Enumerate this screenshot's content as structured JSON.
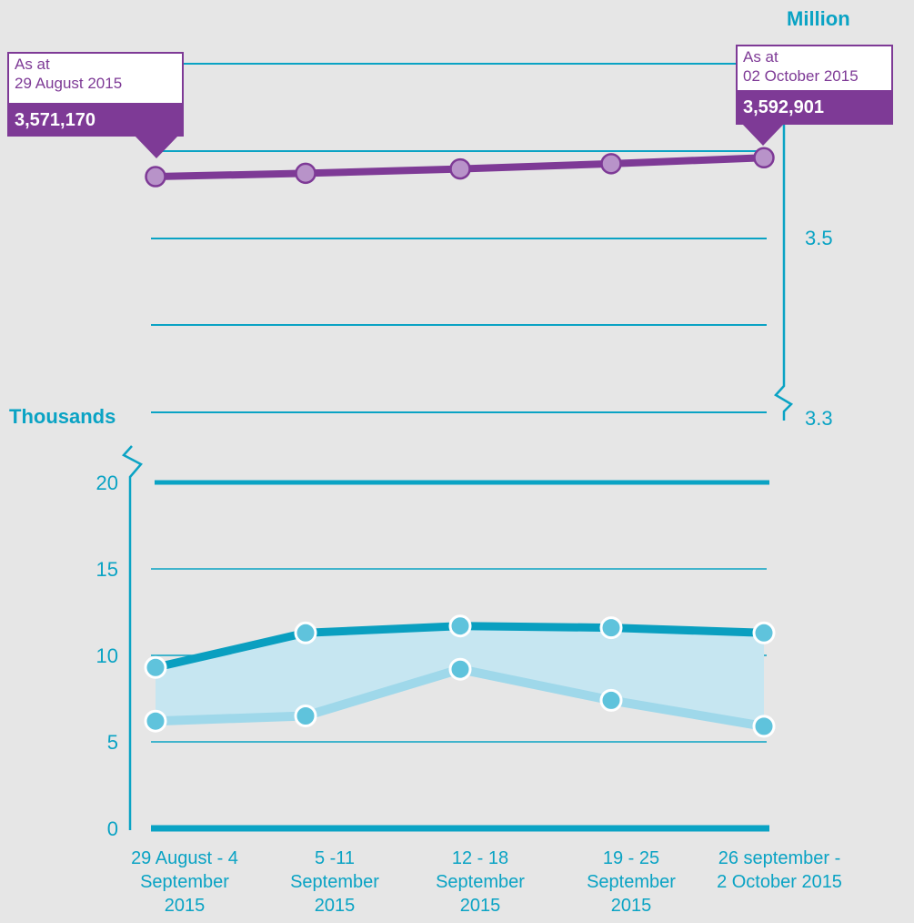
{
  "chart_data": [
    {
      "type": "line",
      "unit_label": "Million",
      "y_ticks": [
        "3.5",
        "3.3"
      ],
      "ylim": [
        3.3,
        3.6
      ],
      "categories": [
        "29 August - 4 September 2015",
        "5 -11 September 2015",
        "12 - 18 September 2015",
        "19 - 25 September 2015",
        "26 september - 2 October 2015"
      ],
      "values": [
        3.57117,
        3.575,
        3.58,
        3.586,
        3.592901
      ],
      "callouts": [
        {
          "date_line1": "As at",
          "date_line2": "29 August 2015",
          "value": "3,571,170"
        },
        {
          "date_line1": "As at",
          "date_line2": "02 October 2015",
          "value": "3,592,901"
        }
      ]
    },
    {
      "type": "area",
      "unit_label": "Thousands",
      "y_ticks": [
        "20",
        "15",
        "10",
        "5",
        "0"
      ],
      "ylim": [
        0,
        20
      ],
      "categories": [
        "29 August - 4 September 2015",
        "5 -11 September 2015",
        "12 - 18 September 2015",
        "19 - 25 September 2015",
        "26 september - 2 October 2015"
      ],
      "x_tick_labels": [
        [
          "29 August - 4",
          "September",
          "2015"
        ],
        [
          "5 -11",
          "September",
          "2015"
        ],
        [
          "12 - 18",
          "September",
          "2015"
        ],
        [
          "19 - 25",
          "September",
          "2015"
        ],
        [
          "26 september -",
          "2 October 2015"
        ]
      ],
      "series": [
        {
          "values": [
            9.3,
            11.3,
            11.7,
            11.6,
            11.3
          ]
        },
        {
          "values": [
            6.2,
            6.5,
            9.2,
            7.4,
            5.9
          ]
        }
      ]
    }
  ],
  "colors": {
    "purple": "#7e3a96",
    "purple_marker": "#b893c9",
    "teal": "#0aa3c4",
    "teal_dark_line": "#0a9fc0",
    "teal_light_line": "#9fd8ea",
    "teal_marker": "#5fc3dc",
    "band_fill": "#c6e6f1",
    "background": "#e6e6e6"
  }
}
